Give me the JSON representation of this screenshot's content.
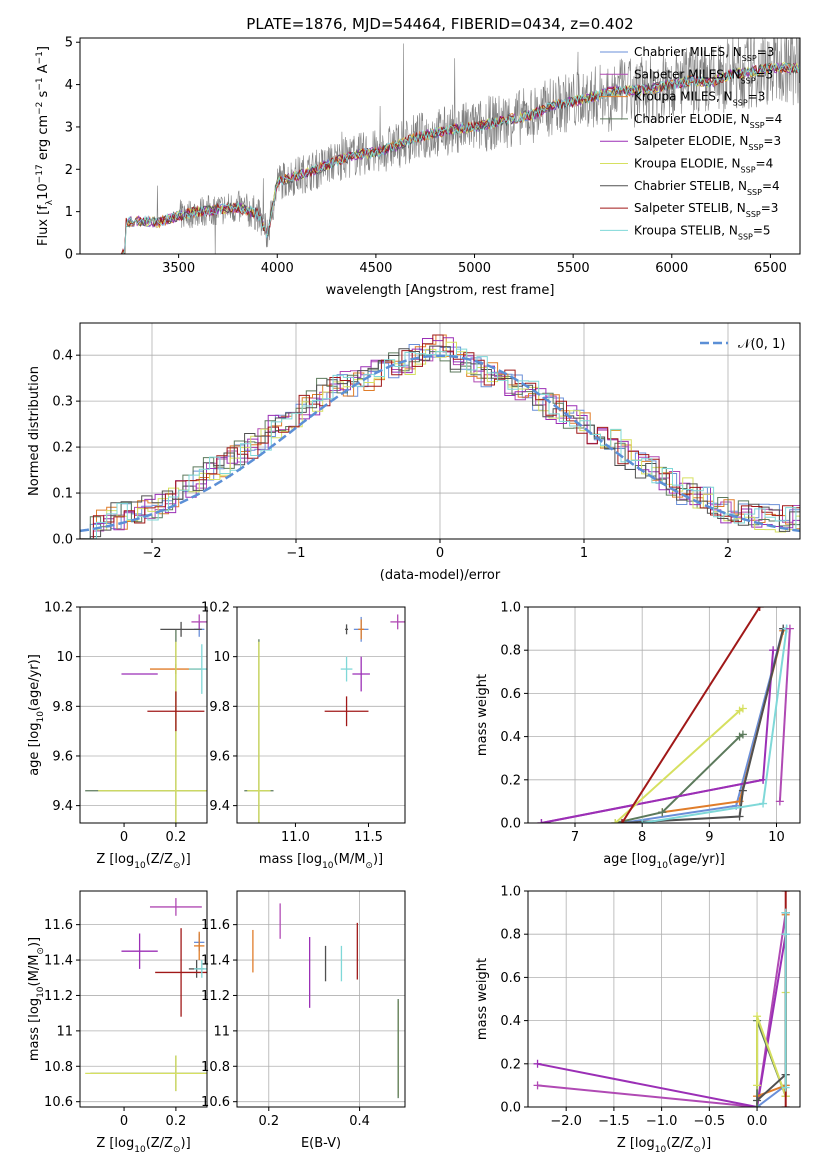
{
  "title": "PLATE=1876, MJD=54464, FIBERID=0434, z=0.402",
  "colors": {
    "grid": "#b0b0b0",
    "spectrum": "#808080",
    "gauss": "#5b8fd6"
  },
  "models": [
    {
      "name": "Chabrier MILES, N",
      "sub": "SSP",
      "suffix": "=3",
      "color": "#6a8fd8"
    },
    {
      "name": "Salpeter MILES, N",
      "sub": "SSP",
      "suffix": "=3",
      "color": "#b04ab4"
    },
    {
      "name": "Kroupa MILES, N",
      "sub": "SSP",
      "suffix": "=3",
      "color": "#e07d2a"
    },
    {
      "name": "Chabrier ELODIE, N",
      "sub": "SSP",
      "suffix": "=4",
      "color": "#5c7a5c"
    },
    {
      "name": "Salpeter ELODIE, N",
      "sub": "SSP",
      "suffix": "=3",
      "color": "#9b2fb6"
    },
    {
      "name": "Kroupa ELODIE, N",
      "sub": "SSP",
      "suffix": "=4",
      "color": "#d6e060"
    },
    {
      "name": "Chabrier STELIB, N",
      "sub": "SSP",
      "suffix": "=4",
      "color": "#505050"
    },
    {
      "name": "Salpeter STELIB, N",
      "sub": "SSP",
      "suffix": "=3",
      "color": "#a01818"
    },
    {
      "name": "Kroupa STELIB, N",
      "sub": "SSP",
      "suffix": "=5",
      "color": "#7fd8d8"
    }
  ],
  "chart_data": [
    {
      "id": "spectrum",
      "type": "line",
      "xlabel": "wavelength [Angstrom, rest frame]",
      "ylabel_parts": [
        "Flux [f",
        "λ",
        "10",
        "−17",
        " erg cm",
        "−2",
        " s",
        "−1",
        " A",
        "−1",
        "]"
      ],
      "xlim": [
        3000,
        6650
      ],
      "ylim": [
        0,
        5.1
      ],
      "xticks": [
        3500,
        4000,
        4500,
        5000,
        5500,
        6000,
        6500
      ],
      "yticks": [
        0,
        1,
        2,
        3,
        4,
        5
      ],
      "continuum": {
        "x": [
          3230,
          3300,
          3400,
          3500,
          3600,
          3700,
          3800,
          3900,
          3950,
          4000,
          4100,
          4200,
          4300,
          4400,
          4500,
          4600,
          4700,
          4800,
          4900,
          5000,
          5100,
          5200,
          5300,
          5400,
          5500,
          5600,
          5700,
          5800,
          5900,
          6000,
          6100,
          6200,
          6300,
          6400,
          6500
        ],
        "y": [
          0.75,
          0.78,
          0.75,
          0.9,
          1.0,
          1.05,
          1.1,
          0.95,
          0.45,
          1.7,
          1.85,
          2.0,
          2.2,
          2.35,
          2.4,
          2.55,
          2.75,
          2.85,
          2.95,
          3.0,
          3.1,
          3.2,
          3.3,
          3.5,
          3.6,
          3.7,
          3.85,
          3.85,
          3.9,
          4.0,
          4.1,
          4.05,
          4.25,
          4.3,
          4.4
        ]
      },
      "observed_start": 3210
    },
    {
      "id": "residuals",
      "type": "step",
      "xlabel": "(data-model)/error",
      "ylabel": "Normed distribution",
      "xlim": [
        -2.5,
        2.5
      ],
      "ylim": [
        0,
        0.47
      ],
      "xticks": [
        -2,
        -1,
        0,
        1,
        2
      ],
      "xticklabels": [
        "−2",
        "−1",
        "0",
        "1",
        "2"
      ],
      "yticks": [
        0.0,
        0.1,
        0.2,
        0.3,
        0.4
      ],
      "yticklabels": [
        "0.0",
        "0.1",
        "0.2",
        "0.3",
        "0.4"
      ],
      "legend": "𝒩(0, 1)",
      "base": [
        0.03,
        0.035,
        0.045,
        0.05,
        0.055,
        0.06,
        0.07,
        0.075,
        0.085,
        0.1,
        0.12,
        0.135,
        0.15,
        0.16,
        0.175,
        0.185,
        0.2,
        0.22,
        0.24,
        0.255,
        0.27,
        0.29,
        0.3,
        0.32,
        0.33,
        0.34,
        0.34,
        0.35,
        0.36,
        0.37,
        0.38,
        0.385,
        0.4,
        0.41,
        0.42,
        0.41,
        0.39,
        0.38,
        0.37,
        0.36,
        0.35,
        0.34,
        0.33,
        0.32,
        0.3,
        0.29,
        0.28,
        0.26,
        0.25,
        0.23,
        0.22,
        0.21,
        0.19,
        0.18,
        0.16,
        0.15,
        0.13,
        0.12,
        0.105,
        0.095,
        0.085,
        0.075,
        0.065,
        0.06,
        0.055,
        0.05,
        0.05,
        0.045,
        0.045,
        0.045
      ]
    },
    {
      "id": "age-vs-Z",
      "type": "errorbar",
      "xlabel_parts": [
        "Z [log",
        "10",
        "(Z/Z",
        "⊙",
        ")]"
      ],
      "ylabel_parts": [
        "age  [log",
        "10",
        "(age/yr)]"
      ],
      "xlim": [
        -0.17,
        0.32
      ],
      "ylim": [
        9.33,
        10.2
      ],
      "xticks": [
        0.0,
        0.2
      ],
      "yticks": [
        9.4,
        9.6,
        9.8,
        10.0,
        10.2
      ],
      "points": [
        {
          "m": 0,
          "x": 0.29,
          "y": 10.11,
          "xe": 0.02,
          "ye": 0.03
        },
        {
          "m": 1,
          "x": 0.29,
          "y": 10.14,
          "xe": 0.03,
          "ye": 0.03
        },
        {
          "m": 2,
          "x": 0.2,
          "y": 9.95,
          "xe": 0.1,
          "ye": 0.02
        },
        {
          "m": 3,
          "x": 0.2,
          "y": 9.46,
          "xe": 0.35,
          "ye": 0.65
        },
        {
          "m": 4,
          "x": 0.06,
          "y": 9.93,
          "xe": 0.07,
          "ye": 0.0
        },
        {
          "m": 5,
          "x": 0.2,
          "y": 9.46,
          "xe": 0.3,
          "ye": 0.6
        },
        {
          "m": 6,
          "x": 0.22,
          "y": 10.11,
          "xe": 0.08,
          "ye": 0.03
        },
        {
          "m": 7,
          "x": 0.2,
          "y": 9.78,
          "xe": 0.11,
          "ye": 0.08
        },
        {
          "m": 8,
          "x": 0.3,
          "y": 9.95,
          "xe": 0.05,
          "ye": 0.1
        }
      ]
    },
    {
      "id": "age-vs-mass",
      "type": "errorbar",
      "xlabel_parts": [
        "mass [log",
        "10",
        "(M/M",
        "⊙",
        ")]"
      ],
      "xlim": [
        10.6,
        11.75
      ],
      "ylim": [
        9.33,
        10.2
      ],
      "xticks": [
        11.0,
        11.5
      ],
      "xticklabels": [
        "11.0",
        "11.5"
      ],
      "yticks": [
        9.4,
        9.6,
        9.8,
        10.0,
        10.2
      ],
      "points": [
        {
          "m": 0,
          "x": 11.45,
          "y": 10.11,
          "xe": 0.05,
          "ye": 0.05
        },
        {
          "m": 1,
          "x": 11.7,
          "y": 10.14,
          "xe": 0.05,
          "ye": 0.03
        },
        {
          "m": 2,
          "x": 11.45,
          "y": 10.11,
          "xe": 0.02,
          "ye": 0.04
        },
        {
          "m": 3,
          "x": 10.75,
          "y": 9.46,
          "xe": 0.1,
          "ye": 0.61
        },
        {
          "m": 4,
          "x": 11.45,
          "y": 9.93,
          "xe": 0.06,
          "ye": 0.07
        },
        {
          "m": 5,
          "x": 10.75,
          "y": 9.46,
          "xe": 0.08,
          "ye": 0.6
        },
        {
          "m": 6,
          "x": 11.35,
          "y": 10.11,
          "xe": 0.01,
          "ye": 0.02
        },
        {
          "m": 7,
          "x": 11.35,
          "y": 9.78,
          "xe": 0.15,
          "ye": 0.06
        },
        {
          "m": 8,
          "x": 11.35,
          "y": 9.95,
          "xe": 0.04,
          "ye": 0.05
        }
      ]
    },
    {
      "id": "mw-vs-age",
      "type": "line",
      "xlabel_parts": [
        "age  [log",
        "10",
        "(age/yr)]"
      ],
      "ylabel": "mass weight",
      "xlim": [
        6.3,
        10.35
      ],
      "ylim": [
        0,
        1.0
      ],
      "xticks": [
        7,
        8,
        9,
        10
      ],
      "yticks": [
        0.0,
        0.2,
        0.4,
        0.6,
        0.8,
        1.0
      ],
      "yticklabels": [
        "0.0",
        "0.2",
        "0.4",
        "0.6",
        "0.8",
        "1.0"
      ],
      "series": [
        {
          "m": 0,
          "x": [
            7.7,
            9.4,
            10.1,
            10.15
          ],
          "y": [
            0.0,
            0.08,
            0.9,
            0.9
          ]
        },
        {
          "m": 1,
          "x": [
            6.5,
            9.8
          ],
          "y": [
            0.0,
            0.2
          ]
        },
        {
          "m": 2,
          "x": [
            8.3,
            9.45,
            10.1
          ],
          "y": [
            0.05,
            0.1,
            0.89
          ]
        },
        {
          "m": 3,
          "x": [
            7.6,
            8.3,
            9.45,
            9.5
          ],
          "y": [
            0.0,
            0.05,
            0.4,
            0.41
          ]
        },
        {
          "m": 4,
          "x": [
            6.5,
            9.8,
            9.95
          ],
          "y": [
            0.0,
            0.2,
            0.8
          ]
        },
        {
          "m": 5,
          "x": [
            7.6,
            9.45,
            9.5
          ],
          "y": [
            0.0,
            0.52,
            0.53
          ]
        },
        {
          "m": 6,
          "x": [
            7.7,
            9.45,
            9.5,
            10.1
          ],
          "y": [
            0.0,
            0.03,
            0.15,
            0.9
          ]
        },
        {
          "m": 7,
          "x": [
            7.7,
            9.75
          ],
          "y": [
            0.0,
            1.0
          ]
        },
        {
          "m": 8,
          "x": [
            8.0,
            9.8,
            10.15
          ],
          "y": [
            0.0,
            0.09,
            0.9
          ]
        },
        {
          "m": 1,
          "x": [
            10.05,
            10.2
          ],
          "y": [
            0.1,
            0.9
          ]
        }
      ]
    },
    {
      "id": "mass-vs-Z",
      "type": "errorbar",
      "xlabel_parts": [
        "Z [log",
        "10",
        "(Z/Z",
        "⊙",
        ")]"
      ],
      "ylabel_parts": [
        "mass [log",
        "10",
        "(M/M",
        "⊙",
        ")]"
      ],
      "xlim": [
        -0.17,
        0.32
      ],
      "ylim": [
        10.57,
        11.79
      ],
      "xticks": [
        0.0,
        0.2
      ],
      "yticks": [
        10.6,
        10.8,
        11.0,
        11.2,
        11.4,
        11.6
      ],
      "points": [
        {
          "m": 0,
          "x": 0.29,
          "y": 11.5,
          "xe": 0.02,
          "ye": 0.05
        },
        {
          "m": 1,
          "x": 0.2,
          "y": 11.7,
          "xe": 0.1,
          "ye": 0.05
        },
        {
          "m": 2,
          "x": 0.29,
          "y": 11.48,
          "xe": 0.02,
          "ye": 0.08
        },
        {
          "m": 3,
          "x": 0.2,
          "y": 10.76,
          "xe": 0.33,
          "ye": 0.1
        },
        {
          "m": 4,
          "x": 0.06,
          "y": 11.45,
          "xe": 0.07,
          "ye": 0.1
        },
        {
          "m": 5,
          "x": 0.2,
          "y": 10.76,
          "xe": 0.35,
          "ye": 0.1
        },
        {
          "m": 6,
          "x": 0.28,
          "y": 11.35,
          "xe": 0.03,
          "ye": 0.05
        },
        {
          "m": 7,
          "x": 0.22,
          "y": 11.33,
          "xe": 0.1,
          "ye": 0.25
        },
        {
          "m": 8,
          "x": 0.3,
          "y": 11.35,
          "xe": 0.03,
          "ye": 0.05
        }
      ]
    },
    {
      "id": "mass-vs-ebv",
      "type": "errorbar",
      "xlabel": "E(B-V)",
      "xlim": [
        0.13,
        0.5
      ],
      "ylim": [
        10.57,
        11.79
      ],
      "xticks": [
        0.2,
        0.4
      ],
      "xticklabels": [
        "0.2",
        "0.4"
      ],
      "yticks": [
        10.6,
        10.8,
        11.0,
        11.2,
        11.4,
        11.6
      ],
      "points": [
        {
          "m": 2,
          "x": 0.165,
          "y": 11.45,
          "xe": 0,
          "ye": 0.12
        },
        {
          "m": 1,
          "x": 0.225,
          "y": 11.62,
          "xe": 0,
          "ye": 0.1
        },
        {
          "m": 4,
          "x": 0.29,
          "y": 11.33,
          "xe": 0,
          "ye": 0.2
        },
        {
          "m": 6,
          "x": 0.325,
          "y": 11.38,
          "xe": 0,
          "ye": 0.1
        },
        {
          "m": 8,
          "x": 0.36,
          "y": 11.38,
          "xe": 0,
          "ye": 0.1
        },
        {
          "m": 7,
          "x": 0.395,
          "y": 11.45,
          "xe": 0,
          "ye": 0.16
        },
        {
          "m": 5,
          "x": 0.485,
          "y": 10.9,
          "xe": 0,
          "ye": 0.27
        },
        {
          "m": 3,
          "x": 0.485,
          "y": 10.9,
          "xe": 0,
          "ye": 0.28
        }
      ]
    },
    {
      "id": "mw-vs-Z",
      "type": "line",
      "xlabel_parts": [
        "Z [log",
        "10",
        "(Z/Z",
        "⊙",
        ")]"
      ],
      "ylabel": "mass weight",
      "xlim": [
        -2.4,
        0.45
      ],
      "ylim": [
        0,
        1.0
      ],
      "xticks": [
        -2.0,
        -1.5,
        -1.0,
        -0.5,
        0.0
      ],
      "xticklabels": [
        "−2.0",
        "−1.5",
        "−1.0",
        "−0.5",
        "0.0"
      ],
      "yticks": [
        0.0,
        0.2,
        0.4,
        0.6,
        0.8,
        1.0
      ],
      "yticklabels": [
        "0.0",
        "0.2",
        "0.4",
        "0.6",
        "0.8",
        "1.0"
      ],
      "series": [
        {
          "m": 1,
          "x": [
            -2.3,
            0.0,
            0.3
          ],
          "y": [
            0.1,
            0.0,
            0.9
          ]
        },
        {
          "m": 4,
          "x": [
            -2.3,
            0.0,
            0.3
          ],
          "y": [
            0.2,
            0.0,
            0.8
          ]
        },
        {
          "m": 0,
          "x": [
            0.0,
            0.3,
            0.3
          ],
          "y": [
            0.0,
            0.1,
            0.9
          ]
        },
        {
          "m": 2,
          "x": [
            0.0,
            0.3,
            0.3
          ],
          "y": [
            0.05,
            0.1,
            0.89
          ]
        },
        {
          "m": 3,
          "x": [
            0.0,
            0.0,
            0.3,
            0.3
          ],
          "y": [
            0.0,
            0.4,
            0.05,
            0.15
          ]
        },
        {
          "m": 5,
          "x": [
            0.0,
            0.0,
            0.3,
            0.3
          ],
          "y": [
            0.1,
            0.42,
            0.05,
            0.53
          ]
        },
        {
          "m": 6,
          "x": [
            0.0,
            0.3,
            0.3
          ],
          "y": [
            0.03,
            0.15,
            0.9
          ]
        },
        {
          "m": 7,
          "x": [
            0.3,
            0.3
          ],
          "y": [
            0.0,
            1.0
          ]
        },
        {
          "m": 8,
          "x": [
            0.3,
            0.3,
            0.3
          ],
          "y": [
            0.09,
            0.9,
            0.8
          ]
        }
      ]
    }
  ]
}
